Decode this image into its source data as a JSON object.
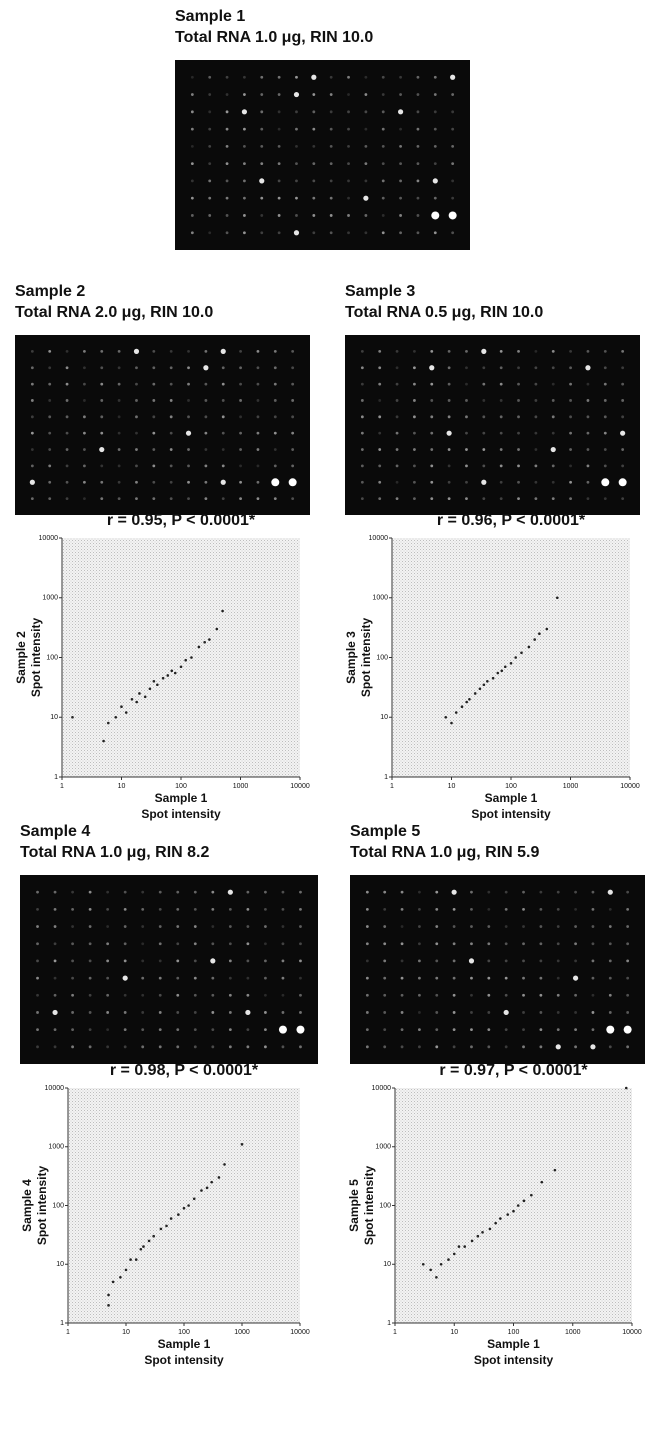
{
  "images": [
    {
      "title": "Sample 1",
      "subtitle": "Total RNA 1.0 μg, RIN 10.0"
    },
    {
      "title": "Sample 2",
      "subtitle": "Total RNA 2.0 μg, RIN 10.0"
    },
    {
      "title": "Sample 3",
      "subtitle": "Total RNA 0.5 μg, RIN 10.0"
    },
    {
      "title": "Sample 4",
      "subtitle": "Total RNA 1.0 μg, RIN 8.2"
    },
    {
      "title": "Sample 5",
      "subtitle": "Total RNA 1.0 μg, RIN 5.9"
    }
  ],
  "chart_data": [
    {
      "type": "scatter",
      "title": "r = 0.95, P < 0.0001*",
      "xlabel": [
        "Sample 1",
        "Spot intensity"
      ],
      "ylabel": [
        "Sample 2",
        "Spot intensity"
      ],
      "log_scale": true,
      "xlim": [
        1,
        10000
      ],
      "ylim": [
        1,
        10000
      ],
      "xticks": [
        1,
        10,
        100,
        1000,
        10000
      ],
      "yticks": [
        1,
        10,
        100,
        1000,
        10000
      ],
      "x": [
        1.5,
        5,
        6,
        8,
        10,
        12,
        15,
        18,
        20,
        25,
        30,
        35,
        40,
        50,
        60,
        70,
        80,
        100,
        120,
        150,
        200,
        250,
        300,
        400,
        500
      ],
      "y": [
        10,
        4,
        8,
        10,
        15,
        12,
        20,
        18,
        25,
        22,
        30,
        40,
        35,
        45,
        50,
        60,
        55,
        70,
        90,
        100,
        150,
        180,
        200,
        300,
        600
      ],
      "color": "#222222"
    },
    {
      "type": "scatter",
      "title": "r = 0.96, P < 0.0001*",
      "xlabel": [
        "Sample 1",
        "Spot intensity"
      ],
      "ylabel": [
        "Sample 3",
        "Spot intensity"
      ],
      "log_scale": true,
      "xlim": [
        1,
        10000
      ],
      "ylim": [
        1,
        10000
      ],
      "xticks": [
        1,
        10,
        100,
        1000,
        10000
      ],
      "yticks": [
        1,
        10,
        100,
        1000,
        10000
      ],
      "x": [
        8,
        10,
        12,
        15,
        18,
        20,
        25,
        30,
        35,
        40,
        50,
        60,
        70,
        80,
        100,
        120,
        150,
        200,
        250,
        300,
        400,
        600
      ],
      "y": [
        10,
        8,
        12,
        15,
        18,
        20,
        25,
        30,
        35,
        40,
        45,
        55,
        60,
        70,
        80,
        100,
        120,
        150,
        200,
        250,
        300,
        1000
      ],
      "color": "#222222"
    },
    {
      "type": "scatter",
      "title": "r = 0.98, P < 0.0001*",
      "xlabel": [
        "Sample 1",
        "Spot intensity"
      ],
      "ylabel": [
        "Sample 4",
        "Spot intensity"
      ],
      "log_scale": true,
      "xlim": [
        1,
        10000
      ],
      "ylim": [
        1,
        10000
      ],
      "xticks": [
        1,
        10,
        100,
        1000,
        10000
      ],
      "yticks": [
        1,
        10,
        100,
        1000,
        10000
      ],
      "x": [
        5,
        5,
        6,
        8,
        10,
        12,
        15,
        18,
        20,
        25,
        30,
        40,
        50,
        60,
        80,
        100,
        120,
        150,
        200,
        250,
        300,
        400,
        500,
        1000
      ],
      "y": [
        2,
        3,
        5,
        6,
        8,
        12,
        12,
        18,
        20,
        25,
        30,
        40,
        45,
        60,
        70,
        90,
        100,
        130,
        180,
        200,
        250,
        300,
        500,
        1100
      ],
      "color": "#222222"
    },
    {
      "type": "scatter",
      "title": "r = 0.97, P < 0.0001*",
      "xlabel": [
        "Sample 1",
        "Spot intensity"
      ],
      "ylabel": [
        "Sample 5",
        "Spot intensity"
      ],
      "log_scale": true,
      "xlim": [
        1,
        10000
      ],
      "ylim": [
        1,
        10000
      ],
      "xticks": [
        1,
        10,
        100,
        1000,
        10000
      ],
      "yticks": [
        1,
        10,
        100,
        1000,
        10000
      ],
      "x": [
        3,
        4,
        5,
        6,
        8,
        10,
        12,
        15,
        20,
        25,
        30,
        40,
        50,
        60,
        80,
        100,
        120,
        150,
        200,
        300,
        500,
        8000
      ],
      "y": [
        10,
        8,
        6,
        10,
        12,
        15,
        20,
        20,
        25,
        30,
        35,
        40,
        50,
        60,
        70,
        80,
        100,
        120,
        150,
        250,
        400,
        10000
      ],
      "color": "#222222"
    }
  ]
}
